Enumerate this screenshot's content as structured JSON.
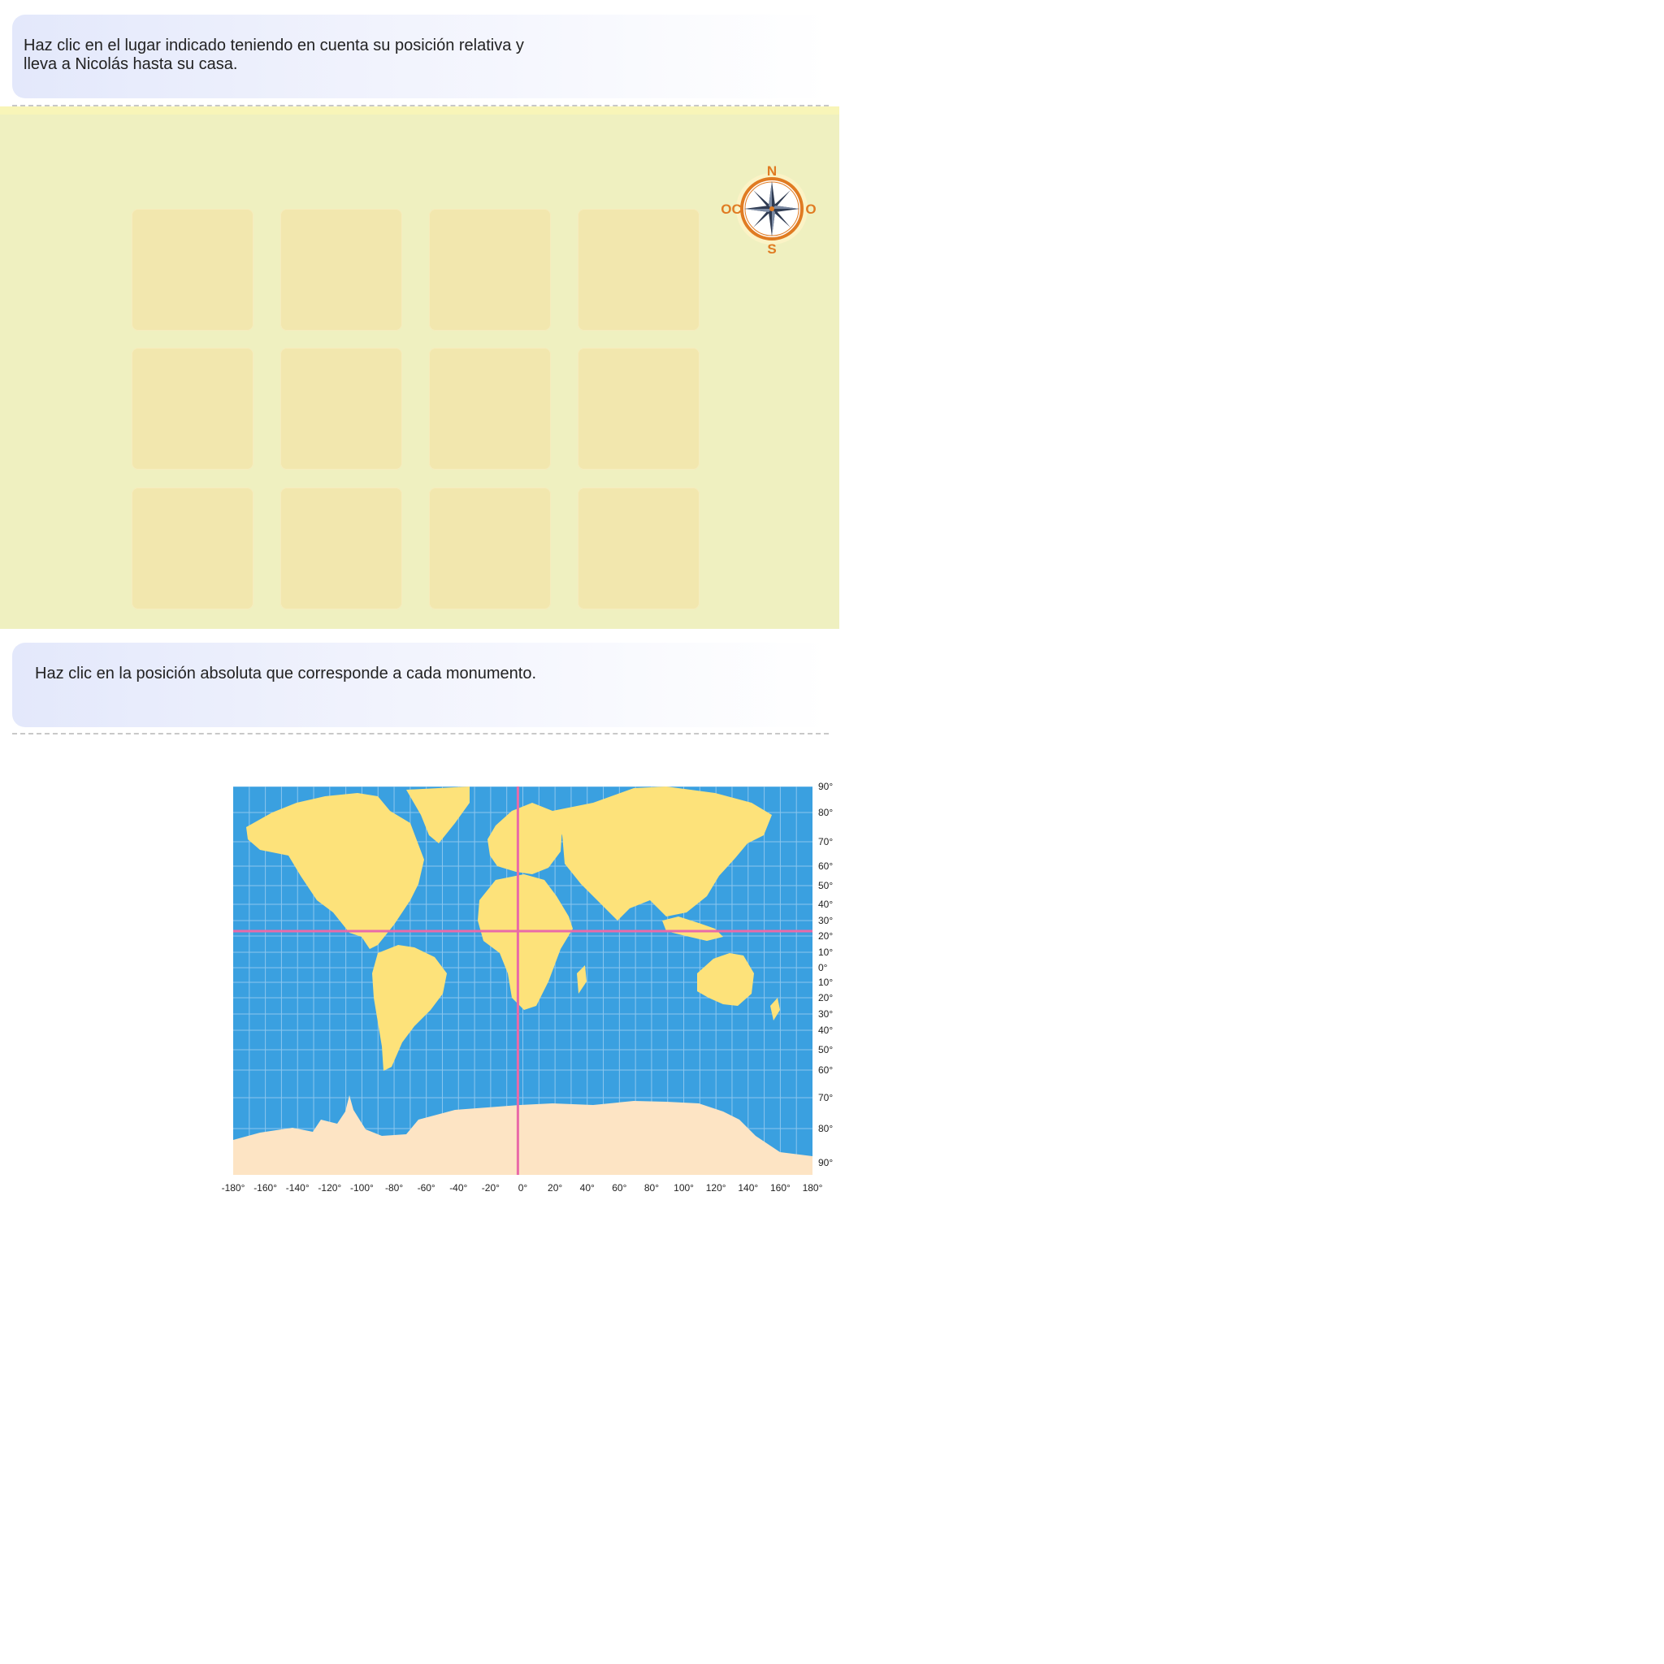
{
  "instructions": {
    "relative": "Haz clic en el lugar indicado teniendo en cuenta su posición relativa y lleva a Nicolás hasta su casa.",
    "absolute": "Haz clic en la posición absoluta que corresponde a cada monumento."
  },
  "compass": {
    "north": "N",
    "west": "OC",
    "east": "O",
    "south": "S"
  },
  "grid": {
    "rows": 3,
    "cols": 4
  },
  "map": {
    "longitude_labels": [
      "-180°",
      "-160°",
      "-140°",
      "-120°",
      "-100°",
      "-80°",
      "-60°",
      "-40°",
      "-20°",
      "0°",
      "20°",
      "40°",
      "60°",
      "80°",
      "100°",
      "120°",
      "140°",
      "160°",
      "180°"
    ],
    "latitude_labels": [
      "90°",
      "80°",
      "70°",
      "60°",
      "50°",
      "40°",
      "30°",
      "20°",
      "10°",
      "0°",
      "10°",
      "20°",
      "30°",
      "40°",
      "50°",
      "60°",
      "70°",
      "80°",
      "90°"
    ],
    "colors": {
      "ocean": "#3aa0e0",
      "land": "#fde27a",
      "antarctica": "#fde4c4",
      "meridian": "#e96aa8",
      "grid": "#8cc6ee"
    }
  }
}
